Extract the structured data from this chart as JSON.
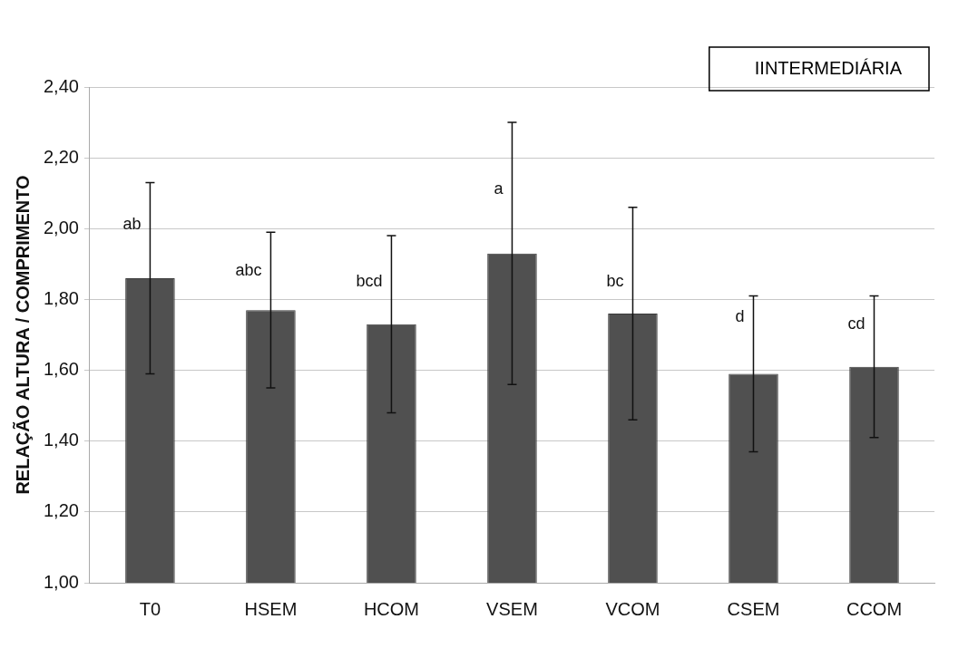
{
  "chart_data": {
    "type": "bar",
    "ylabel": "RELAÇÃO ALTURA / COMPRIMENTO",
    "categories": [
      "T0",
      "HSEM",
      "HCOM",
      "VSEM",
      "VCOM",
      "CSEM",
      "CCOM"
    ],
    "series": [
      {
        "name": "IINTERMEDIÁRIA",
        "color": "#505050",
        "values": [
          1.86,
          1.77,
          1.73,
          1.93,
          1.76,
          1.59,
          1.61
        ],
        "errors": [
          0.27,
          0.22,
          0.25,
          0.37,
          0.3,
          0.22,
          0.2
        ]
      }
    ],
    "ylim": [
      1,
      2.4
    ],
    "yticks": [
      {
        "value": 1,
        "label": "1,00"
      },
      {
        "value": 1.2,
        "label": "1,20"
      },
      {
        "value": 1.4,
        "label": "1,40"
      },
      {
        "value": 1.6,
        "label": "1,60"
      },
      {
        "value": 1.8,
        "label": "1,80"
      },
      {
        "value": 2,
        "label": "2,00"
      },
      {
        "value": 2.2,
        "label": "2,20"
      },
      {
        "value": 2.4,
        "label": "2,40"
      }
    ],
    "grid": "y",
    "legend": "top right",
    "annotations": [
      {
        "text": "ab",
        "x": "T0",
        "y": 2.01
      },
      {
        "text": "abc",
        "x": "HSEM",
        "y": 1.88
      },
      {
        "text": "bcd",
        "x": "HCOM",
        "y": 1.85
      },
      {
        "text": "a",
        "x": "VSEM",
        "y": 2.11
      },
      {
        "text": "bc",
        "x": "VCOM",
        "y": 1.85
      },
      {
        "text": "d",
        "x": "CSEM",
        "y": 1.75
      },
      {
        "text": "cd",
        "x": "CCOM",
        "y": 1.73
      }
    ]
  }
}
